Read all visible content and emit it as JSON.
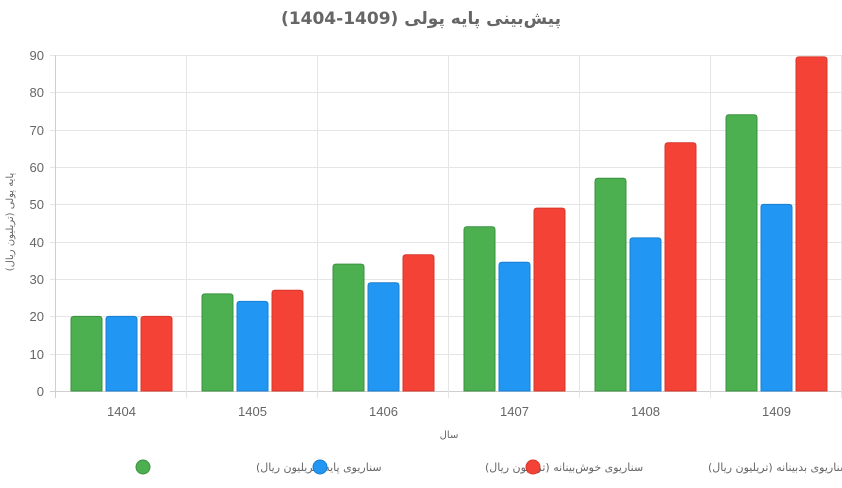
{
  "chart_data": {
    "type": "bar",
    "title": "پیش‌بینی پایه پولی (1409-1404)",
    "xlabel": "سال",
    "ylabel": "پایه پولی (تریلیون ریال)",
    "categories": [
      "1404",
      "1405",
      "1406",
      "1407",
      "1408",
      "1409"
    ],
    "series": [
      {
        "name": "سناریوی پایه (تریلیون ریال)",
        "color": "#4caf50",
        "border": "#3d9140",
        "values": [
          20,
          26,
          34,
          44,
          57,
          74
        ]
      },
      {
        "name": "سناریوی خوش‌بینانه (تریلیون ریال)",
        "color": "#2196f3",
        "border": "#1a7fd0",
        "values": [
          20,
          24,
          29,
          34.5,
          41,
          50
        ]
      },
      {
        "name": "سناریوی بدبینانه (تریلیون ریال)",
        "color": "#f44336",
        "border": "#d8362a",
        "values": [
          20,
          27,
          36.5,
          49,
          66.5,
          89.5
        ]
      }
    ],
    "ylim": [
      0,
      90
    ],
    "yticks": [
      0,
      10,
      20,
      30,
      40,
      50,
      60,
      70,
      80,
      90
    ],
    "grid": true,
    "legend_position": "bottom"
  }
}
